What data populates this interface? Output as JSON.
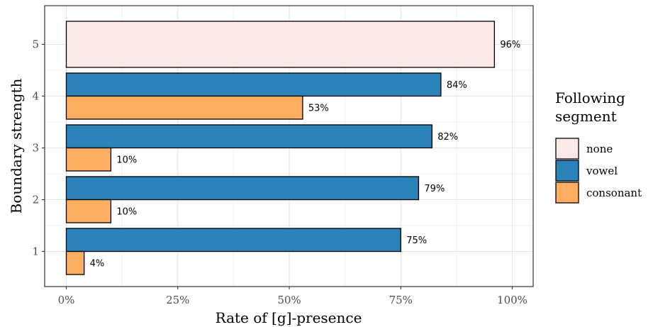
{
  "chart_data": {
    "type": "bar",
    "orientation": "horizontal",
    "xlabel": "Rate of [g]-presence",
    "ylabel": "Boundary strength",
    "xlim": [
      0,
      100
    ],
    "x_ticks": [
      "0%",
      "25%",
      "50%",
      "75%",
      "100%"
    ],
    "categories": [
      "1",
      "2",
      "3",
      "4",
      "5"
    ],
    "grid": true,
    "legend": {
      "title_lines": [
        "Following",
        "segment"
      ],
      "placement": "right"
    },
    "series": [
      {
        "name": "none",
        "color": "#fde8e8",
        "values": [
          null,
          null,
          null,
          null,
          96
        ],
        "labels": [
          null,
          null,
          null,
          null,
          "96%"
        ]
      },
      {
        "name": "vowel",
        "color": "#2b83ba",
        "values": [
          75,
          79,
          82,
          84,
          null
        ],
        "labels": [
          "75%",
          "79%",
          "82%",
          "84%",
          null
        ]
      },
      {
        "name": "consonant",
        "color": "#fdae61",
        "values": [
          4,
          10,
          10,
          53,
          null
        ],
        "labels": [
          "4%",
          "10%",
          "10%",
          "53%",
          null
        ]
      }
    ]
  }
}
